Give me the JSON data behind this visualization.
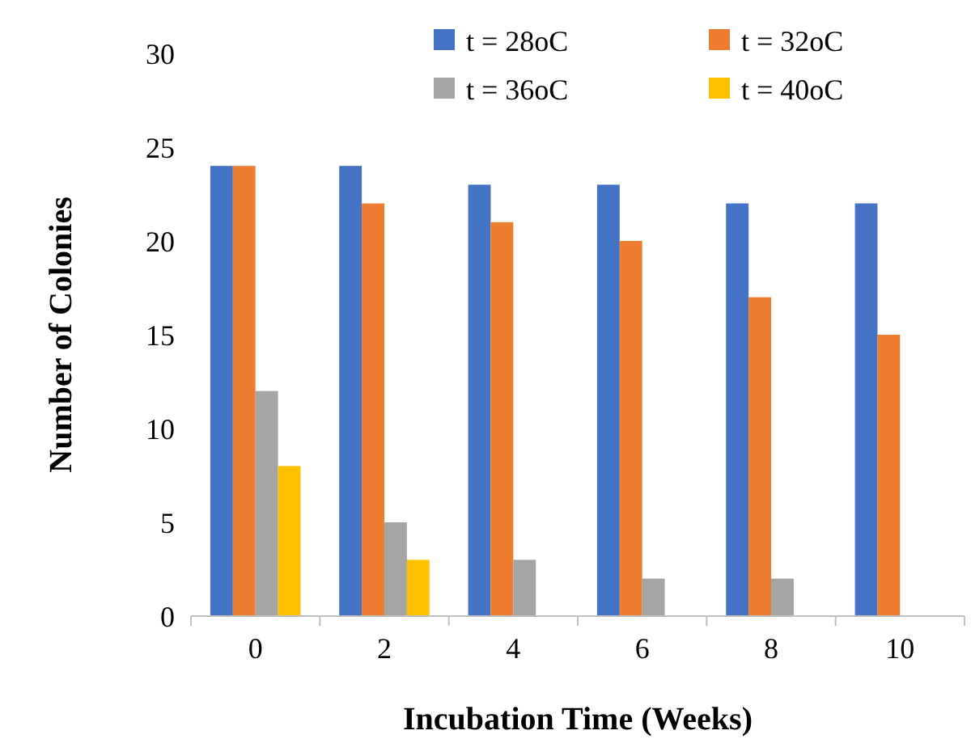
{
  "chart_data": {
    "type": "bar",
    "xlabel": "Incubation Time (Weeks)",
    "ylabel": "Number of Colonies",
    "categories": [
      "0",
      "2",
      "4",
      "6",
      "8",
      "10"
    ],
    "series": [
      {
        "name": "t = 28oC",
        "color": "#4472c4",
        "values": [
          24,
          24,
          23,
          23,
          22,
          22
        ]
      },
      {
        "name": "t = 32oC",
        "color": "#ed7d31",
        "values": [
          24,
          22,
          21,
          20,
          17,
          15
        ]
      },
      {
        "name": "t = 36oC",
        "color": "#a5a5a5",
        "values": [
          12,
          5,
          3,
          2,
          2,
          0
        ]
      },
      {
        "name": "t = 40oC",
        "color": "#ffc000",
        "values": [
          8,
          3,
          0,
          0,
          0,
          0
        ]
      }
    ],
    "ylim": [
      0,
      30
    ],
    "yticks": [
      0,
      5,
      10,
      15,
      20,
      25,
      30
    ],
    "grid": false,
    "legend": "top right"
  }
}
